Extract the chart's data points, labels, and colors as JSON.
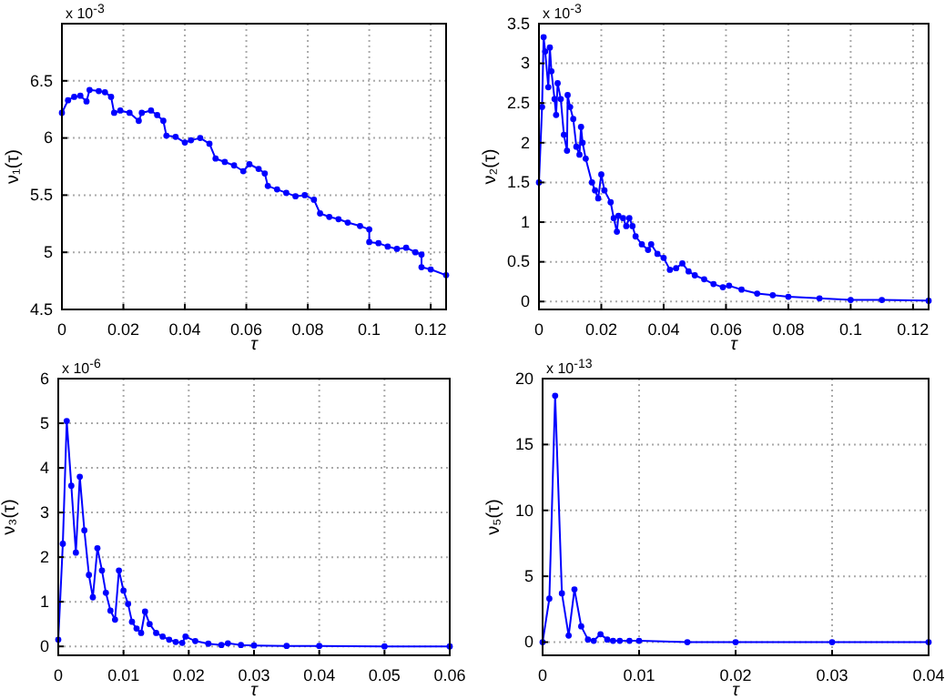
{
  "chart_data": [
    {
      "type": "line",
      "xlabel": "τ",
      "ylabel": "ν₁(τ)",
      "annotations": [
        "x 10$^{-3}$"
      ],
      "xlim": [
        0,
        0.125
      ],
      "ylim": [
        4.5,
        7
      ],
      "xticks": [
        0,
        0.02,
        0.04,
        0.06,
        0.08,
        0.1,
        0.12
      ],
      "yticks": [
        4.5,
        5,
        5.5,
        6,
        6.5
      ],
      "grid": true,
      "marker": "circle",
      "line_style": "solid",
      "series": [
        {
          "color": "#0000ff",
          "x": [
            0,
            0.002,
            0.004,
            0.006,
            0.008,
            0.009,
            0.012,
            0.014,
            0.016,
            0.017,
            0.019,
            0.022,
            0.025,
            0.026,
            0.029,
            0.031,
            0.033,
            0.034,
            0.037,
            0.04,
            0.042,
            0.045,
            0.048,
            0.05,
            0.053,
            0.056,
            0.059,
            0.061,
            0.064,
            0.066,
            0.067,
            0.07,
            0.073,
            0.076,
            0.079,
            0.082,
            0.084,
            0.087,
            0.09,
            0.093,
            0.097,
            0.1,
            0.1,
            0.103,
            0.106,
            0.109,
            0.112,
            0.115,
            0.117,
            0.117,
            0.12,
            0.125
          ],
          "values": [
            6.22,
            6.33,
            6.36,
            6.37,
            6.32,
            6.42,
            6.41,
            6.4,
            6.36,
            6.22,
            6.24,
            6.22,
            6.15,
            6.22,
            6.24,
            6.2,
            6.15,
            6.02,
            6.01,
            5.96,
            5.98,
            6.0,
            5.95,
            5.82,
            5.79,
            5.76,
            5.71,
            5.77,
            5.73,
            5.69,
            5.58,
            5.55,
            5.52,
            5.49,
            5.5,
            5.46,
            5.34,
            5.31,
            5.29,
            5.26,
            5.23,
            5.2,
            5.09,
            5.08,
            5.05,
            5.03,
            5.04,
            5.0,
            4.98,
            4.87,
            4.85,
            4.8
          ]
        }
      ]
    },
    {
      "type": "line",
      "xlabel": "τ",
      "ylabel": "ν₂(τ)",
      "annotations": [
        "x 10$^{-3}$"
      ],
      "xlim": [
        0,
        0.125
      ],
      "ylim": [
        -0.1,
        3.5
      ],
      "xticks": [
        0,
        0.02,
        0.04,
        0.06,
        0.08,
        0.1,
        0.12
      ],
      "yticks": [
        0,
        0.5,
        1,
        1.5,
        2,
        2.5,
        3,
        3.5
      ],
      "grid": true,
      "marker": "circle",
      "line_style": "solid",
      "series": [
        {
          "color": "#0000ff",
          "x": [
            0,
            0.001,
            0.0015,
            0.002,
            0.003,
            0.0035,
            0.004,
            0.005,
            0.0055,
            0.006,
            0.007,
            0.008,
            0.009,
            0.0092,
            0.01,
            0.011,
            0.012,
            0.013,
            0.0135,
            0.014,
            0.015,
            0.017,
            0.018,
            0.019,
            0.02,
            0.021,
            0.023,
            0.024,
            0.025,
            0.0255,
            0.027,
            0.028,
            0.029,
            0.03,
            0.031,
            0.033,
            0.035,
            0.036,
            0.038,
            0.04,
            0.042,
            0.044,
            0.046,
            0.048,
            0.05,
            0.053,
            0.056,
            0.059,
            0.061,
            0.065,
            0.07,
            0.075,
            0.08,
            0.09,
            0.1,
            0.11,
            0.125
          ],
          "values": [
            1.5,
            2.45,
            3.33,
            3.15,
            2.7,
            3.2,
            2.9,
            2.55,
            2.35,
            2.75,
            2.55,
            2.1,
            1.9,
            2.6,
            2.45,
            2.3,
            1.95,
            1.85,
            2.2,
            2.0,
            1.8,
            1.5,
            1.4,
            1.3,
            1.6,
            1.4,
            1.25,
            1.05,
            0.88,
            1.08,
            1.05,
            0.95,
            1.05,
            0.95,
            0.82,
            0.72,
            0.65,
            0.72,
            0.6,
            0.55,
            0.4,
            0.42,
            0.48,
            0.38,
            0.33,
            0.28,
            0.22,
            0.18,
            0.2,
            0.15,
            0.1,
            0.08,
            0.06,
            0.04,
            0.02,
            0.02,
            0.01
          ]
        }
      ]
    },
    {
      "type": "line",
      "xlabel": "τ",
      "ylabel": "ν₃(τ)",
      "annotations": [
        "x 10$^{-6}$"
      ],
      "xlim": [
        0,
        0.06
      ],
      "ylim": [
        -0.2,
        6
      ],
      "xticks": [
        0,
        0.01,
        0.02,
        0.03,
        0.04,
        0.05,
        0.06
      ],
      "yticks": [
        0,
        1,
        2,
        3,
        4,
        5,
        6
      ],
      "grid": true,
      "marker": "circle",
      "line_style": "solid",
      "series": [
        {
          "color": "#0000ff",
          "x": [
            0,
            0.0007,
            0.0013,
            0.002,
            0.0027,
            0.0033,
            0.004,
            0.0047,
            0.0053,
            0.006,
            0.0067,
            0.0073,
            0.008,
            0.0087,
            0.0093,
            0.01,
            0.0107,
            0.0113,
            0.012,
            0.0127,
            0.0133,
            0.014,
            0.015,
            0.016,
            0.017,
            0.018,
            0.019,
            0.0195,
            0.021,
            0.023,
            0.025,
            0.026,
            0.028,
            0.03,
            0.035,
            0.04,
            0.05,
            0.06
          ],
          "values": [
            0.15,
            2.3,
            5.05,
            3.6,
            2.1,
            3.8,
            2.6,
            1.6,
            1.1,
            2.2,
            1.7,
            1.2,
            0.8,
            0.6,
            1.7,
            1.25,
            0.95,
            0.55,
            0.4,
            0.3,
            0.78,
            0.5,
            0.3,
            0.22,
            0.15,
            0.1,
            0.08,
            0.22,
            0.12,
            0.06,
            0.03,
            0.07,
            0.03,
            0.02,
            0.01,
            0.01,
            0,
            0
          ]
        }
      ]
    },
    {
      "type": "line",
      "xlabel": "τ",
      "ylabel": "ν₅(τ)",
      "annotations": [
        "x 10$^{-13}$"
      ],
      "xlim": [
        0,
        0.04
      ],
      "ylim": [
        -1,
        20
      ],
      "xticks": [
        0,
        0.01,
        0.02,
        0.03,
        0.04
      ],
      "yticks": [
        0,
        5,
        10,
        15,
        20
      ],
      "grid": true,
      "marker": "circle",
      "line_style": "solid",
      "series": [
        {
          "color": "#0000ff",
          "x": [
            0,
            0.0007,
            0.0013,
            0.002,
            0.0027,
            0.0033,
            0.004,
            0.0047,
            0.0053,
            0.006,
            0.0067,
            0.0073,
            0.008,
            0.009,
            0.01,
            0.015,
            0.02,
            0.03,
            0.04
          ],
          "values": [
            0,
            3.3,
            18.7,
            3.7,
            0.5,
            4.0,
            1.2,
            0.2,
            0.1,
            0.6,
            0.2,
            0.1,
            0.1,
            0.1,
            0.1,
            0,
            0,
            0,
            0
          ]
        }
      ]
    }
  ]
}
